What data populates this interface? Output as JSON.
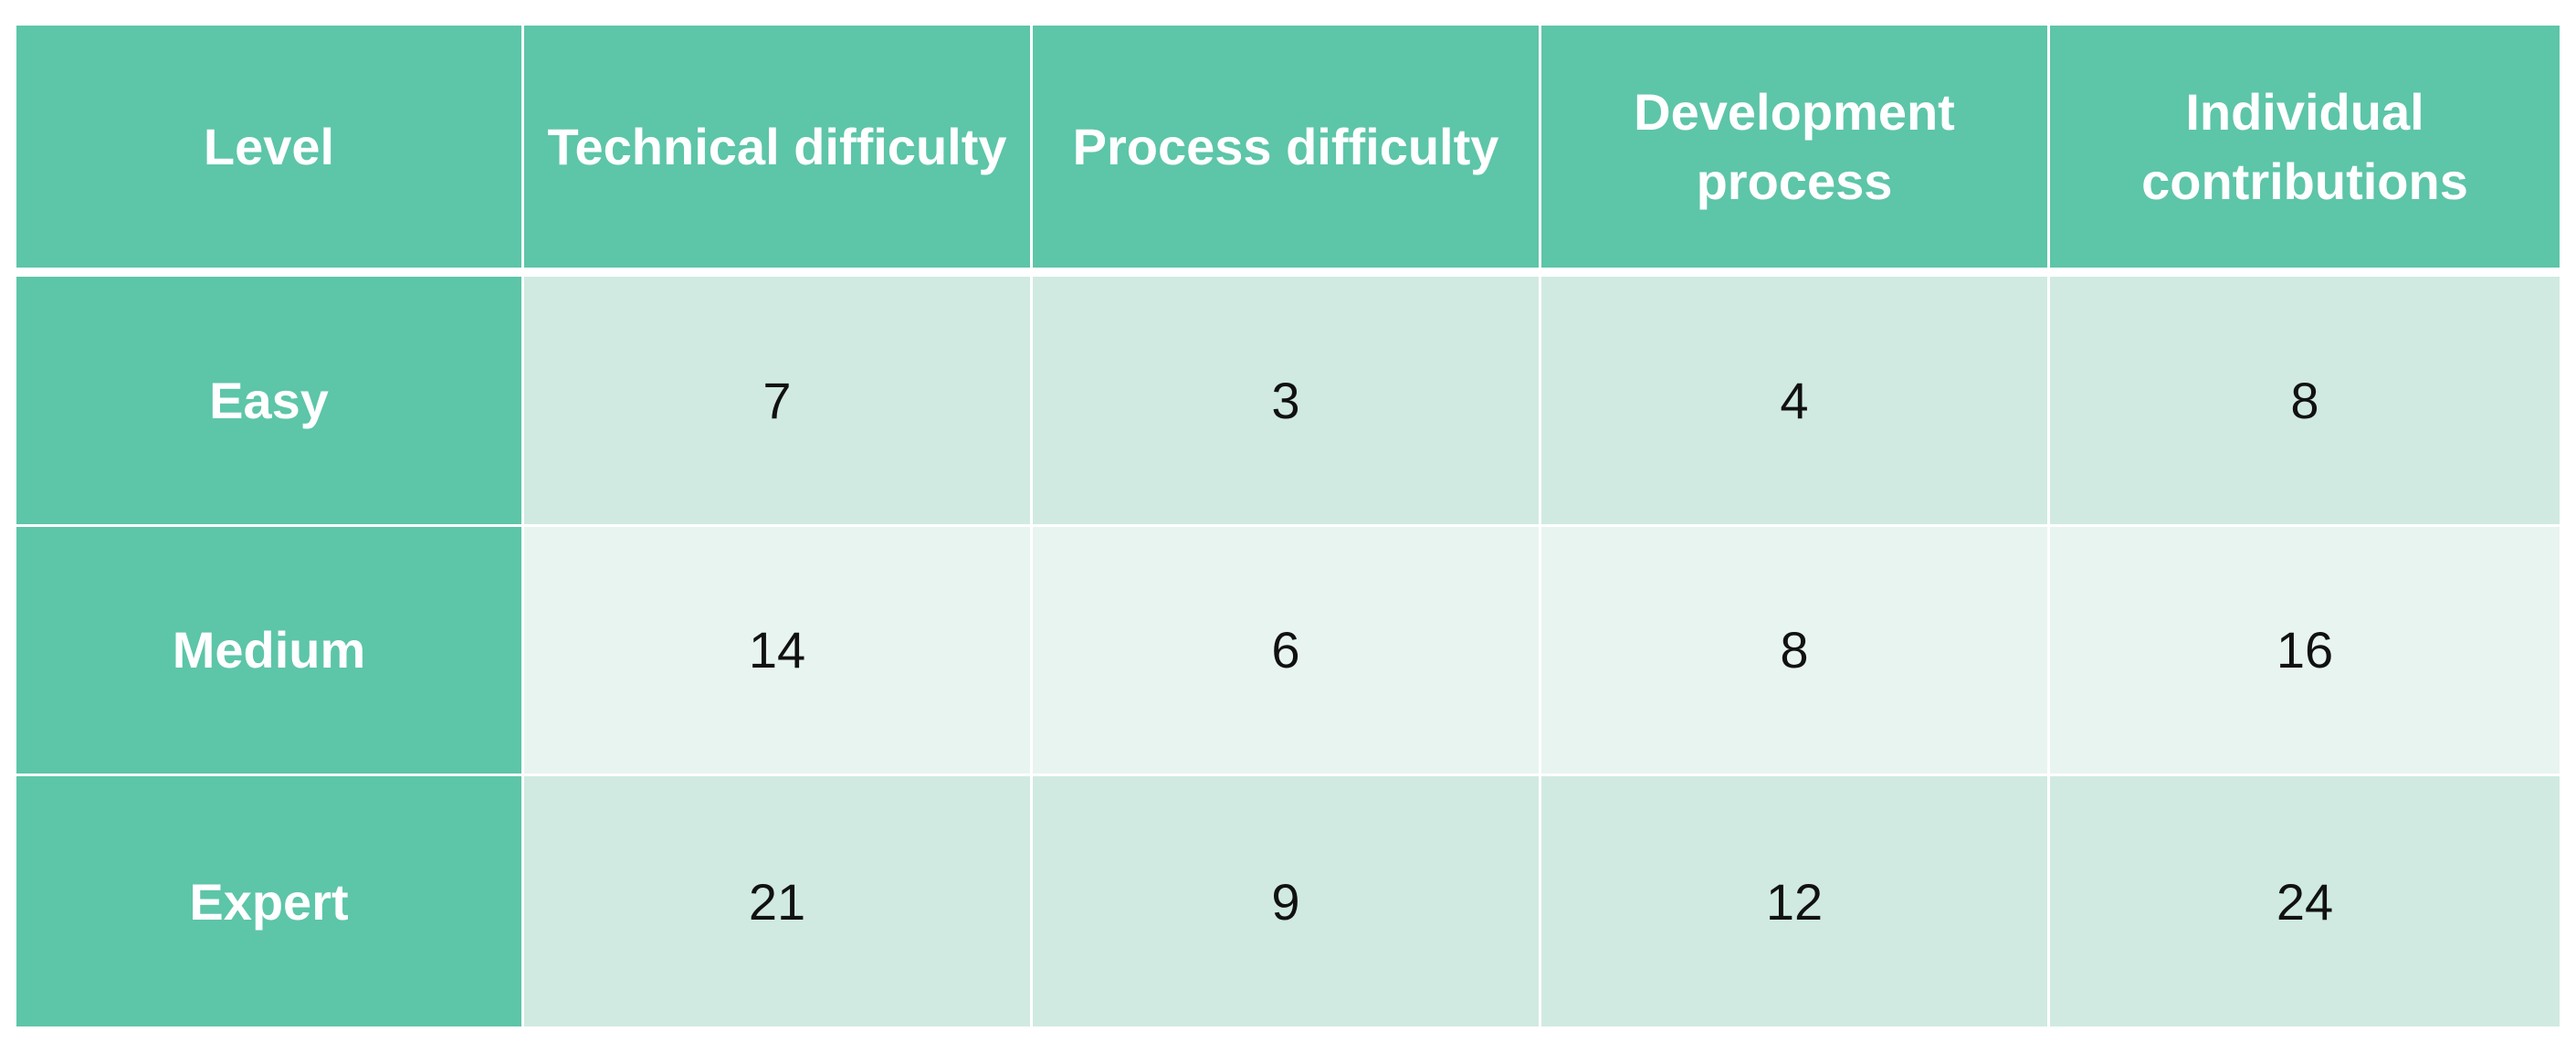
{
  "colors": {
    "header_bg": "#5dc5a8",
    "header_text": "#ffffff",
    "row_band_dark": "#d0eae1",
    "row_band_light": "#e8f4f0",
    "cell_text": "#111111",
    "grid_lines": "#ffffff"
  },
  "table": {
    "columns": [
      "Level",
      "Technical difficulty",
      "Process difficulty",
      "Development process",
      "Individual contributions"
    ],
    "rows": [
      {
        "level": "Easy",
        "values": [
          "7",
          "3",
          "4",
          "8"
        ]
      },
      {
        "level": "Medium",
        "values": [
          "14",
          "6",
          "8",
          "16"
        ]
      },
      {
        "level": "Expert",
        "values": [
          "21",
          "9",
          "12",
          "24"
        ]
      }
    ]
  }
}
